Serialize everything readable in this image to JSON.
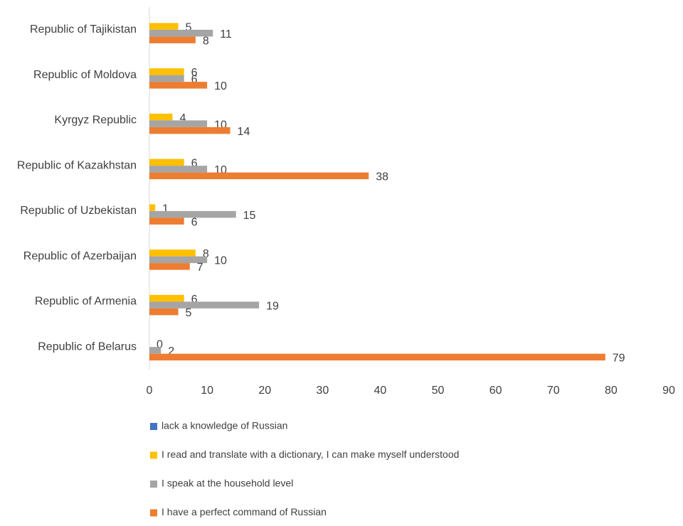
{
  "chart_data": {
    "type": "hbar",
    "categories": [
      "Republic of Tajikistan",
      "Republic of Moldova",
      "Kyrgyz Republic",
      "Republic of Kazakhstan",
      "Republic of Uzbekistan",
      "Republic of Azerbaijan",
      "Republic of Armenia",
      "Republic of Belarus"
    ],
    "series": [
      {
        "name": "lack a knowledge of Russian",
        "color": "#4472c4",
        "values": [
          null,
          null,
          null,
          null,
          null,
          null,
          null,
          null
        ]
      },
      {
        "name": "I read and translate with a dictionary, I can make myself understood",
        "color": "#ffc000",
        "values": [
          5,
          6,
          4,
          6,
          1,
          8,
          6,
          0
        ]
      },
      {
        "name": "I speak at the household level",
        "color": "#a5a5a5",
        "values": [
          11,
          6,
          10,
          10,
          15,
          10,
          19,
          2
        ]
      },
      {
        "name": "I have a perfect command of Russian",
        "color": "#ed7d31",
        "values": [
          8,
          10,
          14,
          38,
          6,
          7,
          5,
          79
        ]
      }
    ],
    "xlim": [
      0,
      90
    ],
    "xticks": [
      0,
      10,
      20,
      30,
      40,
      50,
      60,
      70,
      80,
      90
    ],
    "grid": false,
    "legend": "bottom"
  }
}
